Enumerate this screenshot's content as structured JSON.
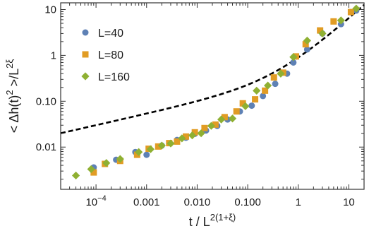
{
  "chart_data": {
    "type": "scatter",
    "xscale": "log",
    "yscale": "log",
    "xlim": [
      2e-05,
      20
    ],
    "ylim": [
      0.0012,
      14
    ],
    "grid": false,
    "legend_position": "top-left",
    "xlabel": "t / L^{2(1+ξ)}",
    "ylabel": "< Δh(t)^2 >/L^{2ξ}",
    "x_ticks": [
      {
        "value": 0.0001,
        "label": "10",
        "exp": "−4"
      },
      {
        "value": 0.001,
        "label": "0.001",
        "exp": ""
      },
      {
        "value": 0.01,
        "label": "0.010",
        "exp": ""
      },
      {
        "value": 0.1,
        "label": "0.100",
        "exp": ""
      },
      {
        "value": 1,
        "label": "1",
        "exp": ""
      },
      {
        "value": 10,
        "label": "10",
        "exp": ""
      }
    ],
    "y_ticks": [
      {
        "value": 0.01,
        "label": "0.01"
      },
      {
        "value": 0.1,
        "label": "0.10"
      },
      {
        "value": 1,
        "label": "1"
      },
      {
        "value": 10,
        "label": "10"
      }
    ],
    "series": [
      {
        "name": "L=40",
        "color": "#5e81b5",
        "marker": "circle",
        "points": [
          [
            9e-05,
            0.0036
          ],
          [
            0.00025,
            0.0053
          ],
          [
            0.0006,
            0.0078
          ],
          [
            0.001,
            0.0068
          ],
          [
            0.002,
            0.0108
          ],
          [
            0.004,
            0.0143
          ],
          [
            0.006,
            0.016
          ],
          [
            0.009,
            0.0195
          ],
          [
            0.015,
            0.023
          ],
          [
            0.025,
            0.029
          ],
          [
            0.04,
            0.04
          ],
          [
            0.07,
            0.06
          ],
          [
            0.12,
            0.08
          ],
          [
            0.2,
            0.13
          ],
          [
            0.35,
            0.24
          ],
          [
            0.6,
            0.4
          ],
          [
            0.8,
            0.7
          ],
          [
            1.5,
            1.35
          ],
          [
            3,
            3.0
          ],
          [
            7,
            4.8
          ],
          [
            14,
            9.5
          ]
        ]
      },
      {
        "name": "L=80",
        "color": "#e19c24",
        "marker": "square",
        "points": [
          [
            9e-05,
            0.0028
          ],
          [
            0.00015,
            0.0043
          ],
          [
            0.0003,
            0.005
          ],
          [
            0.00065,
            0.0068
          ],
          [
            0.0011,
            0.0092
          ],
          [
            0.0017,
            0.0103
          ],
          [
            0.0028,
            0.0122
          ],
          [
            0.004,
            0.0132
          ],
          [
            0.006,
            0.017
          ],
          [
            0.009,
            0.021
          ],
          [
            0.014,
            0.026
          ],
          [
            0.023,
            0.031
          ],
          [
            0.035,
            0.045
          ],
          [
            0.06,
            0.06
          ],
          [
            0.08,
            0.09
          ],
          [
            0.14,
            0.11
          ],
          [
            0.22,
            0.17
          ],
          [
            0.33,
            0.33
          ],
          [
            0.5,
            0.42
          ],
          [
            0.9,
            0.95
          ],
          [
            1.4,
            1.75
          ],
          [
            2.7,
            3.5
          ],
          [
            5,
            5.5
          ],
          [
            11,
            8.8
          ]
        ]
      },
      {
        "name": "L=160",
        "color": "#8fb032",
        "marker": "diamond",
        "points": [
          [
            4e-05,
            0.0024
          ],
          [
            8e-05,
            0.0033
          ],
          [
            0.00016,
            0.0045
          ],
          [
            0.0003,
            0.0055
          ],
          [
            0.0007,
            0.0078
          ],
          [
            0.0012,
            0.009
          ],
          [
            0.002,
            0.0108
          ],
          [
            0.003,
            0.012
          ],
          [
            0.005,
            0.0155
          ],
          [
            0.008,
            0.018
          ],
          [
            0.012,
            0.02
          ],
          [
            0.019,
            0.029
          ],
          [
            0.03,
            0.04
          ],
          [
            0.05,
            0.042
          ],
          [
            0.09,
            0.078
          ],
          [
            0.15,
            0.17
          ],
          [
            0.25,
            0.22
          ],
          [
            0.45,
            0.4
          ],
          [
            0.8,
            0.92
          ],
          [
            1.5,
            2.1
          ],
          [
            3,
            3.0
          ],
          [
            7,
            5.8
          ],
          [
            14,
            10.5
          ]
        ]
      }
    ],
    "fit_line": {
      "style": "dashed",
      "color": "#000000"
    }
  }
}
